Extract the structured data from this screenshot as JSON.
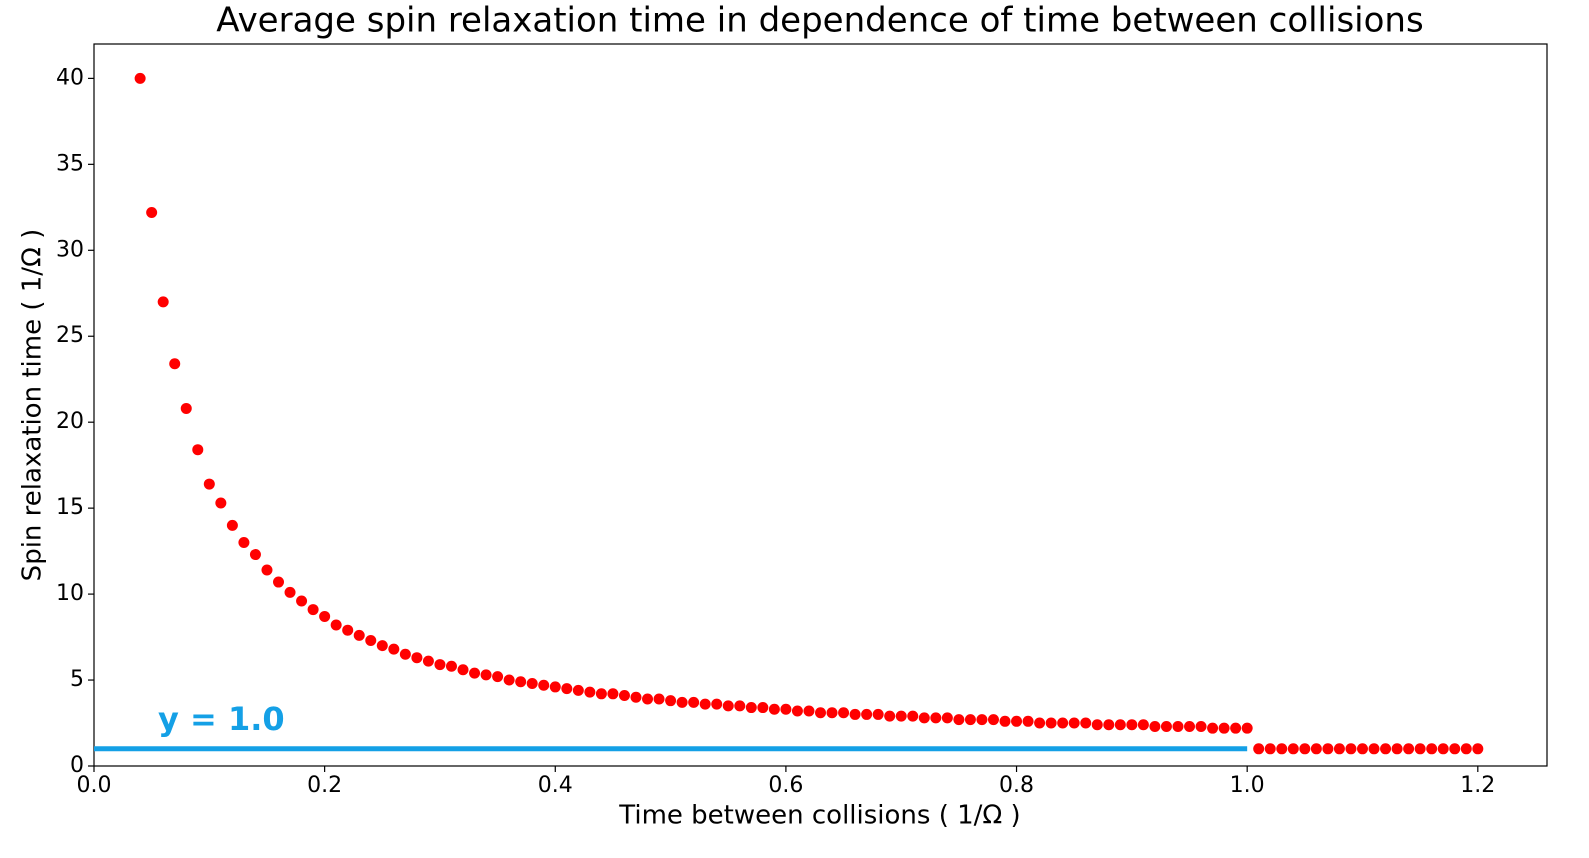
{
  "chart_data": {
    "type": "scatter",
    "title": "Average spin relaxation time in dependence of time between collisions",
    "x_label": "Time between collisions ( 1/Ω )",
    "y_label": "Spin relaxation time ( 1/Ω )",
    "color": "#ff0000",
    "x": [
      0.04,
      0.05,
      0.06,
      0.07,
      0.08,
      0.09,
      0.1,
      0.11,
      0.12,
      0.13,
      0.14,
      0.15,
      0.16,
      0.17,
      0.18,
      0.19,
      0.2,
      0.21,
      0.22,
      0.23,
      0.24,
      0.25,
      0.26,
      0.27,
      0.28,
      0.29,
      0.3,
      0.31,
      0.32,
      0.33,
      0.34,
      0.35,
      0.36,
      0.37,
      0.38,
      0.39,
      0.4,
      0.41,
      0.42,
      0.43,
      0.44,
      0.45,
      0.46,
      0.47,
      0.48,
      0.49,
      0.5,
      0.51,
      0.52,
      0.53,
      0.54,
      0.55,
      0.56,
      0.57,
      0.58,
      0.59,
      0.6,
      0.61,
      0.62,
      0.63,
      0.64,
      0.65,
      0.66,
      0.67,
      0.68,
      0.69,
      0.7,
      0.71,
      0.72,
      0.73,
      0.74,
      0.75,
      0.76,
      0.77,
      0.78,
      0.79,
      0.8,
      0.81,
      0.82,
      0.83,
      0.84,
      0.85,
      0.86,
      0.87,
      0.88,
      0.89,
      0.9,
      0.91,
      0.92,
      0.93,
      0.94,
      0.95,
      0.96,
      0.97,
      0.98,
      0.99,
      1.0,
      1.01,
      1.02,
      1.03,
      1.04,
      1.05,
      1.06,
      1.07,
      1.08,
      1.09,
      1.1,
      1.11,
      1.12,
      1.13,
      1.14,
      1.15,
      1.16,
      1.17,
      1.18,
      1.19,
      1.2
    ],
    "values": [
      40.0,
      32.2,
      27.0,
      23.4,
      20.8,
      18.4,
      16.4,
      15.3,
      14.0,
      13.0,
      12.3,
      11.4,
      10.7,
      10.1,
      9.6,
      9.1,
      8.7,
      8.2,
      7.9,
      7.6,
      7.3,
      7.0,
      6.8,
      6.5,
      6.3,
      6.1,
      5.9,
      5.8,
      5.6,
      5.4,
      5.3,
      5.2,
      5.0,
      4.9,
      4.8,
      4.7,
      4.6,
      4.5,
      4.4,
      4.3,
      4.2,
      4.2,
      4.1,
      4.0,
      3.9,
      3.9,
      3.8,
      3.7,
      3.7,
      3.6,
      3.6,
      3.5,
      3.5,
      3.4,
      3.4,
      3.3,
      3.3,
      3.2,
      3.2,
      3.1,
      3.1,
      3.1,
      3.0,
      3.0,
      3.0,
      2.9,
      2.9,
      2.9,
      2.8,
      2.8,
      2.8,
      2.7,
      2.7,
      2.7,
      2.7,
      2.6,
      2.6,
      2.6,
      2.5,
      2.5,
      2.5,
      2.5,
      2.5,
      2.4,
      2.4,
      2.4,
      2.4,
      2.4,
      2.3,
      2.3,
      2.3,
      2.3,
      2.3,
      2.2,
      2.2,
      2.2,
      2.2,
      1.0,
      1.0,
      1.0,
      1.0,
      1.0,
      1.0,
      1.0,
      1.0,
      1.0,
      1.0,
      1.0,
      1.0,
      1.0,
      1.0,
      1.0,
      1.0,
      1.0,
      1.0,
      1.0,
      1.0
    ],
    "reference_line": {
      "x": [
        0,
        1.0
      ],
      "values": [
        1.0,
        1.0
      ],
      "color": "#14a0e6",
      "annotation": "y = 1.0"
    },
    "xlim": [
      0,
      1.26
    ],
    "ylim": [
      0,
      42
    ],
    "xticks": [
      {
        "value": 0,
        "label": "0.0"
      },
      0.2,
      0.4,
      0.6,
      0.8,
      {
        "value": 1,
        "label": "1.0"
      },
      1.2
    ],
    "yticks": [
      0,
      5,
      10,
      15,
      20,
      25,
      30,
      35,
      40
    ],
    "grid": false
  }
}
